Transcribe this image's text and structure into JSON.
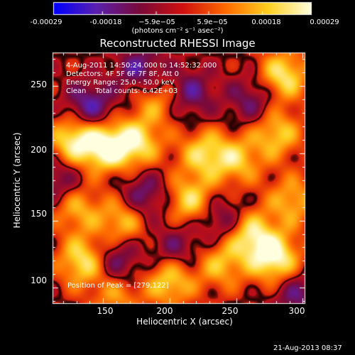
{
  "colorbar": {
    "ticks": [
      "-0.00029",
      "-0.00018",
      "−5.9e−05",
      "5.9e−05",
      "0.00018",
      "0.00029"
    ],
    "tick_values": [
      -0.00029,
      -0.00018,
      -5.9e-05,
      5.9e-05,
      0.00018,
      0.00029
    ],
    "range": [
      -0.00029,
      0.00029
    ],
    "unit_label": "(photons cm⁻² s⁻¹ asec⁻²)",
    "colors": [
      "#0000ff",
      "#5b20b0",
      "#7a0a3a",
      "#d01010",
      "#ff6a00",
      "#ffd020",
      "#ffffe0"
    ]
  },
  "chart_data": {
    "type": "heatmap",
    "title": "Reconstructed RHESSI Image",
    "xlabel": "Heliocentric X (arcsec)",
    "ylabel": "Heliocentric Y (arcsec)",
    "xlim": [
      112,
      302
    ],
    "ylim": [
      88,
      275
    ],
    "xticks": [
      150,
      200,
      250,
      300
    ],
    "yticks": [
      100,
      150,
      200,
      250
    ],
    "colormap": "rhessi-blue-purple-red-yellow-white",
    "peak": [
      279,
      122
    ],
    "hot_regions": [
      {
        "x": 128,
        "y": 210,
        "level": 0.9
      },
      {
        "x": 152,
        "y": 205,
        "level": 0.95
      },
      {
        "x": 175,
        "y": 208,
        "level": 0.8
      },
      {
        "x": 135,
        "y": 120,
        "level": 0.85
      },
      {
        "x": 130,
        "y": 160,
        "level": 0.6
      },
      {
        "x": 165,
        "y": 150,
        "level": 0.7
      },
      {
        "x": 215,
        "y": 165,
        "level": 0.75
      },
      {
        "x": 225,
        "y": 200,
        "level": 0.7
      },
      {
        "x": 250,
        "y": 195,
        "level": 0.65
      },
      {
        "x": 280,
        "y": 215,
        "level": 0.7
      },
      {
        "x": 285,
        "y": 258,
        "level": 0.85
      },
      {
        "x": 260,
        "y": 140,
        "level": 0.85
      },
      {
        "x": 279,
        "y": 122,
        "level": 1.0
      },
      {
        "x": 292,
        "y": 165,
        "level": 0.6
      },
      {
        "x": 200,
        "y": 105,
        "level": 0.75
      },
      {
        "x": 238,
        "y": 118,
        "level": 0.6
      },
      {
        "x": 190,
        "y": 240,
        "level": 0.55
      },
      {
        "x": 160,
        "y": 95,
        "level": 0.5
      }
    ],
    "cold_regions": [
      {
        "x": 140,
        "y": 235,
        "level": -0.7
      },
      {
        "x": 178,
        "y": 262,
        "level": -0.6
      },
      {
        "x": 215,
        "y": 245,
        "level": -0.55
      },
      {
        "x": 180,
        "y": 168,
        "level": -0.6
      },
      {
        "x": 240,
        "y": 150,
        "level": -0.55
      },
      {
        "x": 160,
        "y": 120,
        "level": -0.6
      },
      {
        "x": 118,
        "y": 180,
        "level": -0.5
      },
      {
        "x": 295,
        "y": 95,
        "level": -0.5
      },
      {
        "x": 262,
        "y": 240,
        "level": -0.5
      },
      {
        "x": 205,
        "y": 130,
        "level": -0.45
      }
    ]
  },
  "info": {
    "line1": "4-Aug-2011 14:50:24.000 to 14:52:32.000",
    "line2": "Detectors: 4F 5F 6F 7F 8F, Att 0",
    "line3": "Energy Range: 25.0 - 50.0 keV",
    "line4": "Clean    Total counts: 6.42E+03",
    "peak": "Position of Peak = [279,122]"
  },
  "footer_date": "21-Aug-2013 08:37"
}
